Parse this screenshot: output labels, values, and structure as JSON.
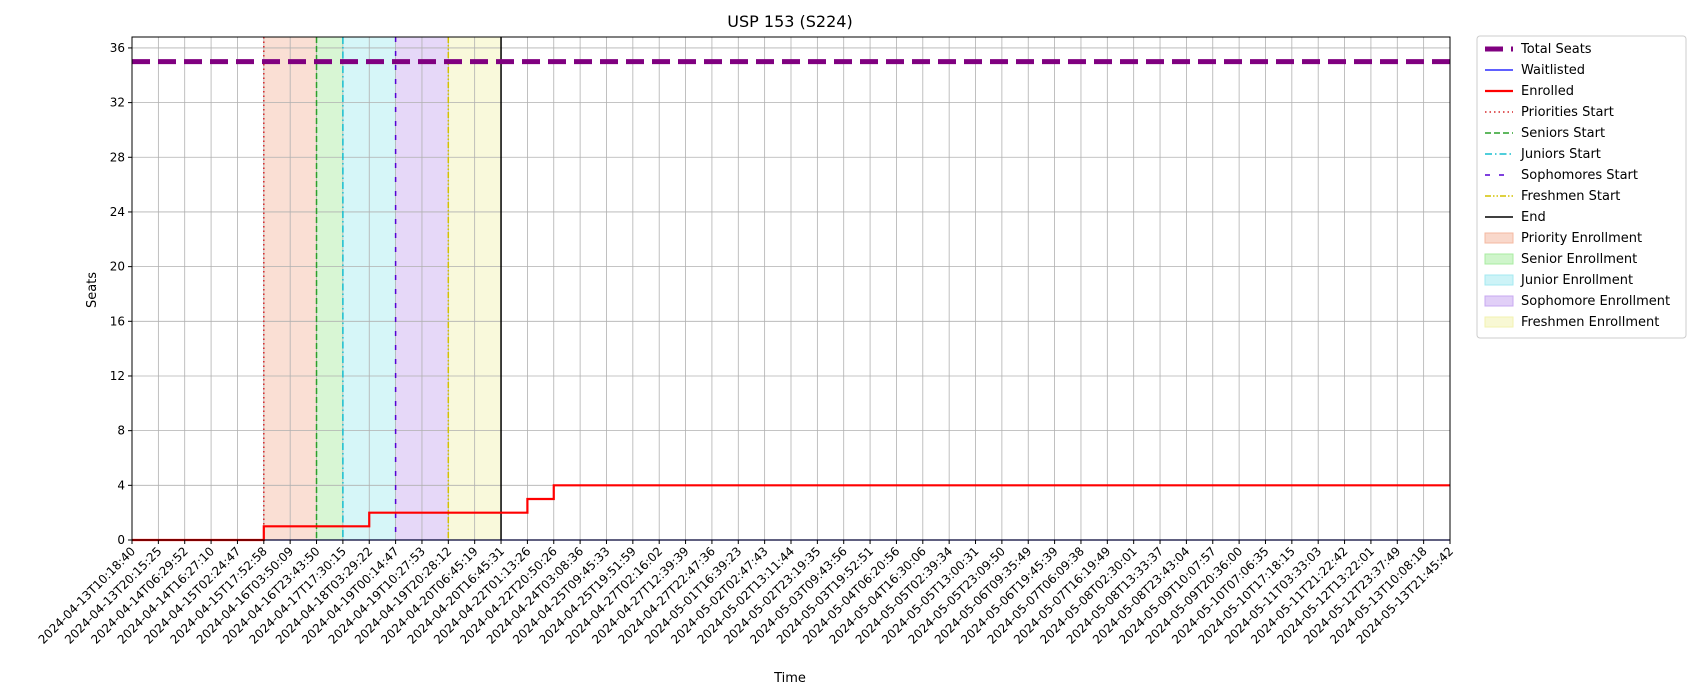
{
  "chart_data": {
    "type": "line",
    "title": "USP 153 (S224)",
    "xlabel": "Time",
    "ylabel": "Seats",
    "ylim": [
      0,
      36.8
    ],
    "yticks": [
      0,
      4,
      8,
      12,
      16,
      20,
      24,
      28,
      32,
      36
    ],
    "grid": true,
    "legend_position": "outside-right",
    "x_ticks": [
      "2024-04-13T10:18:40",
      "2024-04-13T20:15:25",
      "2024-04-14T06:29:52",
      "2024-04-14T16:27:10",
      "2024-04-15T02:24:47",
      "2024-04-15T17:52:58",
      "2024-04-16T03:50:09",
      "2024-04-16T23:43:50",
      "2024-04-17T17:30:15",
      "2024-04-18T03:29:22",
      "2024-04-19T00:14:47",
      "2024-04-19T10:27:53",
      "2024-04-19T20:28:12",
      "2024-04-20T06:45:19",
      "2024-04-20T16:45:31",
      "2024-04-22T01:13:26",
      "2024-04-22T20:50:26",
      "2024-04-24T03:08:36",
      "2024-04-25T09:45:33",
      "2024-04-25T19:51:59",
      "2024-04-27T02:16:02",
      "2024-04-27T12:39:39",
      "2024-04-27T22:47:36",
      "2024-05-01T16:39:23",
      "2024-05-02T02:47:43",
      "2024-05-02T13:11:44",
      "2024-05-02T23:19:35",
      "2024-05-03T09:43:56",
      "2024-05-03T19:52:51",
      "2024-05-04T06:20:56",
      "2024-05-04T16:30:06",
      "2024-05-05T02:39:34",
      "2024-05-05T13:00:31",
      "2024-05-05T23:09:50",
      "2024-05-06T09:35:49",
      "2024-05-06T19:45:39",
      "2024-05-07T06:09:38",
      "2024-05-07T16:19:49",
      "2024-05-08T02:30:01",
      "2024-05-08T13:33:37",
      "2024-05-08T23:43:04",
      "2024-05-09T10:07:57",
      "2024-05-09T20:36:00",
      "2024-05-10T07:06:35",
      "2024-05-10T17:18:15",
      "2024-05-11T03:33:03",
      "2024-05-11T21:22:42",
      "2024-05-12T13:22:01",
      "2024-05-12T23:37:49",
      "2024-05-13T10:08:18",
      "2024-05-13T21:45:42"
    ],
    "series": [
      {
        "name": "Total Seats",
        "color": "#800080",
        "style": "dashed-thick",
        "step": false,
        "points": [
          [
            "2024-04-13T10:18:40",
            35
          ],
          [
            "2024-05-13T21:45:42",
            35
          ]
        ]
      },
      {
        "name": "Waitlisted",
        "color": "#0000ff",
        "style": "solid-thin",
        "step": true,
        "points": [
          [
            "2024-04-13T10:18:40",
            0
          ],
          [
            "2024-05-13T21:45:42",
            0
          ]
        ]
      },
      {
        "name": "Enrolled",
        "color": "#ff0000",
        "style": "solid-thick",
        "step": true,
        "points": [
          [
            "2024-04-13T10:18:40",
            0
          ],
          [
            "2024-04-15T17:52:58",
            1
          ],
          [
            "2024-04-18T03:29:22",
            2
          ],
          [
            "2024-04-22T01:13:26",
            3
          ],
          [
            "2024-04-22T20:50:26",
            4
          ],
          [
            "2024-05-13T21:45:42",
            4
          ]
        ]
      }
    ],
    "vlines": [
      {
        "name": "Priorities Start",
        "x": "2024-04-15T17:52:58",
        "color": "#d62728",
        "style": "dotted"
      },
      {
        "name": "Seniors Start",
        "x": "2024-04-16T23:43:50",
        "color": "#2ca02c",
        "style": "dashed"
      },
      {
        "name": "Juniors Start",
        "x": "2024-04-17T17:30:15",
        "color": "#17becf",
        "style": "dashdot"
      },
      {
        "name": "Sophomores Start",
        "x": "2024-04-19T00:14:47",
        "color": "#5500d4",
        "style": "loosedash"
      },
      {
        "name": "Freshmen Start",
        "x": "2024-04-19T20:28:12",
        "color": "#d4c200",
        "style": "dashdotdot"
      },
      {
        "name": "End",
        "x": "2024-04-20T16:45:31",
        "color": "#000000",
        "style": "solid"
      }
    ],
    "spans": [
      {
        "name": "Priority Enrollment",
        "from": "2024-04-15T17:52:58",
        "to": "2024-04-16T23:43:50",
        "color": "#f4b8a0"
      },
      {
        "name": "Senior Enrollment",
        "from": "2024-04-16T23:43:50",
        "to": "2024-04-17T17:30:15",
        "color": "#a8eca0"
      },
      {
        "name": "Junior Enrollment",
        "from": "2024-04-17T17:30:15",
        "to": "2024-04-19T00:14:47",
        "color": "#a4eaf0"
      },
      {
        "name": "Sophomore Enrollment",
        "from": "2024-04-19T00:14:47",
        "to": "2024-04-19T20:28:12",
        "color": "#c8a8f0"
      },
      {
        "name": "Freshmen Enrollment",
        "from": "2024-04-19T20:28:12",
        "to": "2024-04-20T16:45:31",
        "color": "#f2f2b0"
      }
    ],
    "legend": [
      {
        "label": "Total Seats",
        "kind": "line",
        "color": "#800080",
        "style": "dashed-thick"
      },
      {
        "label": "Waitlisted",
        "kind": "line",
        "color": "#0000ff",
        "style": "solid-thin"
      },
      {
        "label": "Enrolled",
        "kind": "line",
        "color": "#ff0000",
        "style": "solid-thick"
      },
      {
        "label": "Priorities Start",
        "kind": "line",
        "color": "#d62728",
        "style": "dotted"
      },
      {
        "label": "Seniors Start",
        "kind": "line",
        "color": "#2ca02c",
        "style": "dashed"
      },
      {
        "label": "Juniors Start",
        "kind": "line",
        "color": "#17becf",
        "style": "dashdot"
      },
      {
        "label": "Sophomores Start",
        "kind": "line",
        "color": "#5500d4",
        "style": "loosedash"
      },
      {
        "label": "Freshmen Start",
        "kind": "line",
        "color": "#d4c200",
        "style": "dashdotdot"
      },
      {
        "label": "End",
        "kind": "line",
        "color": "#000000",
        "style": "solid"
      },
      {
        "label": "Priority Enrollment",
        "kind": "patch",
        "color": "#f4b8a0"
      },
      {
        "label": "Senior Enrollment",
        "kind": "patch",
        "color": "#a8eca0"
      },
      {
        "label": "Junior Enrollment",
        "kind": "patch",
        "color": "#a4eaf0"
      },
      {
        "label": "Sophomore Enrollment",
        "kind": "patch",
        "color": "#c8a8f0"
      },
      {
        "label": "Freshmen Enrollment",
        "kind": "patch",
        "color": "#f2f2b0"
      }
    ]
  }
}
